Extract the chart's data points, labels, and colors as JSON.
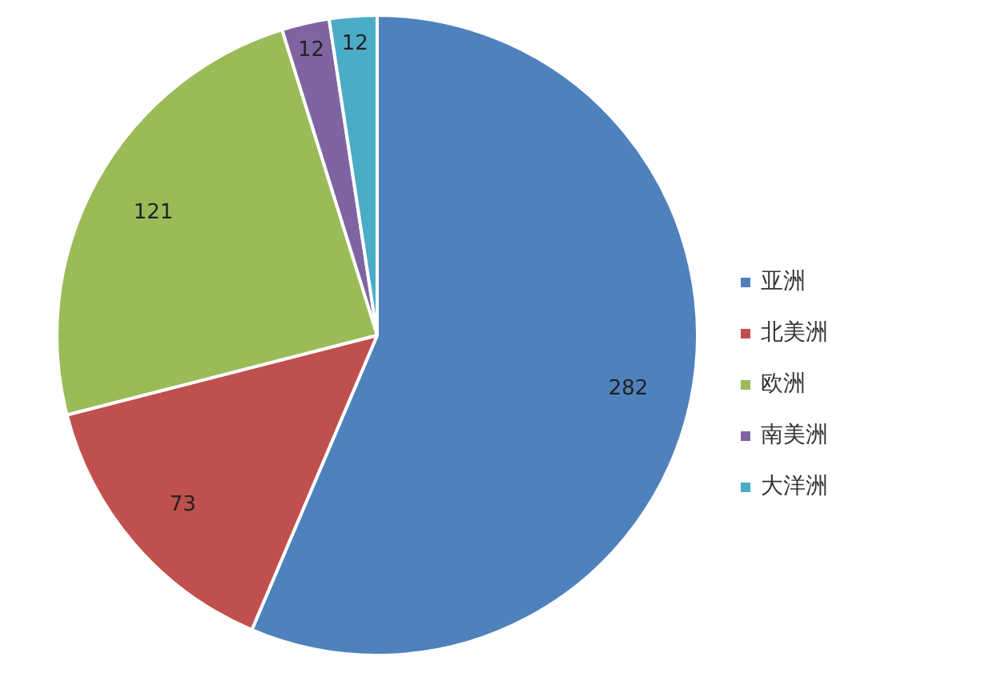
{
  "chart_data": {
    "type": "pie",
    "categories": [
      "亚洲",
      "北美洲",
      "欧洲",
      "南美洲",
      "大洋洲"
    ],
    "values": [
      282,
      73,
      121,
      12,
      12
    ],
    "colors": [
      "#4f81bd",
      "#c0504d",
      "#9bbb59",
      "#8064a2",
      "#4bacc6"
    ],
    "data_labels": true,
    "legend": "right"
  }
}
